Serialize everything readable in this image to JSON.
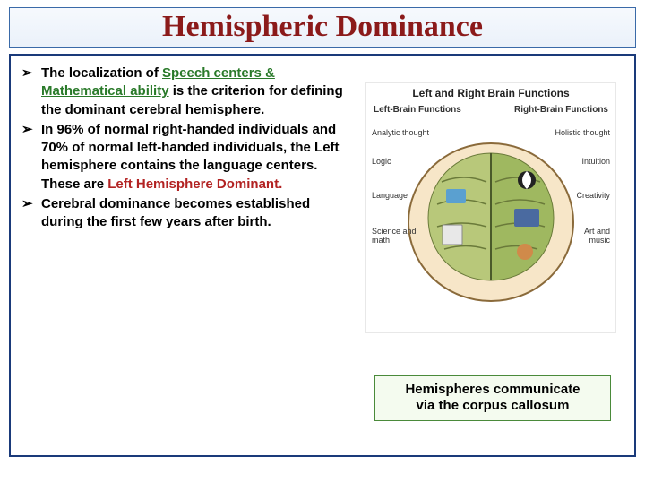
{
  "title": "Hemispheric Dominance",
  "bullets": [
    {
      "parts": [
        {
          "t": "The localization of ",
          "cls": ""
        },
        {
          "t": "Speech centers & Mathematical ability",
          "cls": "green",
          "underline": true
        },
        {
          "t": " is the criterion for defining the dominant cerebral hemisphere.",
          "cls": ""
        }
      ]
    },
    {
      "parts": [
        {
          "t": "In 96% of normal right-handed individuals and 70% of normal left-handed individuals, the Left hemisphere contains the language centers. These are ",
          "cls": ""
        },
        {
          "t": "Left Hemisphere Dominant.",
          "cls": "red"
        }
      ]
    },
    {
      "parts": [
        {
          "t": "Cerebral dominance becomes established during the first few years after birth.",
          "cls": ""
        }
      ]
    }
  ],
  "diagram": {
    "title": "Left and Right Brain Functions",
    "left_header": "Left-Brain Functions",
    "right_header": "Right-Brain Functions",
    "left_labels": [
      "Analytic thought",
      "Logic",
      "Language",
      "Science and math"
    ],
    "right_labels": [
      "Holistic thought",
      "Intuition",
      "Creativity",
      "Art and music"
    ],
    "skull_fill": "#f7e6c8",
    "skull_stroke": "#8a6a3a",
    "left_brain_fill": "#b8c87a",
    "right_brain_fill": "#9fb860",
    "furrow_color": "#6a7a3a"
  },
  "caption_line1": "Hemispheres communicate",
  "caption_line2": "via the corpus callosum"
}
